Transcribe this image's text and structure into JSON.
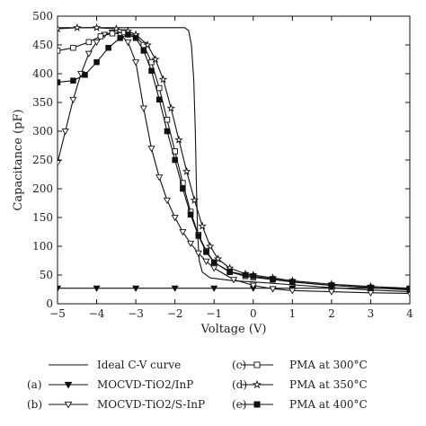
{
  "chart_data": {
    "type": "line",
    "xlabel": "Voltage (V)",
    "ylabel": "Capacitance (pF)",
    "xlim": [
      -5,
      4
    ],
    "ylim": [
      0,
      500
    ],
    "x_ticks": [
      -5,
      -4,
      -3,
      -2,
      -1,
      0,
      1,
      2,
      3,
      4
    ],
    "y_ticks": [
      0,
      50,
      100,
      150,
      200,
      250,
      300,
      350,
      400,
      450,
      500
    ],
    "grid": false,
    "legend_position": "bottom",
    "series": [
      {
        "key": "ideal",
        "name": "Ideal C-V curve",
        "prefix": "",
        "marker": "none",
        "points": [
          [
            -5,
            480
          ],
          [
            -2.0,
            480
          ],
          [
            -1.75,
            480
          ],
          [
            -1.65,
            475
          ],
          [
            -1.58,
            450
          ],
          [
            -1.52,
            390
          ],
          [
            -1.48,
            300
          ],
          [
            -1.45,
            200
          ],
          [
            -1.42,
            120
          ],
          [
            -1.38,
            75
          ],
          [
            -1.3,
            55
          ],
          [
            -1.1,
            45
          ],
          [
            -0.5,
            40
          ],
          [
            0,
            38
          ],
          [
            1,
            33
          ],
          [
            2,
            28
          ],
          [
            3,
            24
          ],
          [
            4,
            21
          ]
        ]
      },
      {
        "key": "a",
        "name": "MOCVD-TiO2/InP",
        "prefix": "(a)",
        "marker": "tri-down-filled",
        "points": [
          [
            -5,
            27
          ],
          [
            -4,
            27
          ],
          [
            -3,
            27
          ],
          [
            -2,
            27
          ],
          [
            -1,
            27
          ],
          [
            0,
            27
          ],
          [
            1,
            27
          ],
          [
            2,
            27
          ],
          [
            3,
            27
          ],
          [
            4,
            27
          ]
        ]
      },
      {
        "key": "b",
        "name": "MOCVD-TiO2/S-InP",
        "prefix": "(b)",
        "marker": "tri-down-open",
        "points": [
          [
            -5,
            245
          ],
          [
            -4.8,
            300
          ],
          [
            -4.6,
            355
          ],
          [
            -4.4,
            400
          ],
          [
            -4.2,
            435
          ],
          [
            -4.0,
            455
          ],
          [
            -3.8,
            468
          ],
          [
            -3.6,
            472
          ],
          [
            -3.4,
            468
          ],
          [
            -3.2,
            455
          ],
          [
            -3.0,
            420
          ],
          [
            -2.8,
            340
          ],
          [
            -2.6,
            270
          ],
          [
            -2.4,
            220
          ],
          [
            -2.2,
            180
          ],
          [
            -2.0,
            150
          ],
          [
            -1.8,
            125
          ],
          [
            -1.6,
            105
          ],
          [
            -1.4,
            88
          ],
          [
            -1.2,
            74
          ],
          [
            -1.0,
            62
          ],
          [
            -0.5,
            42
          ],
          [
            0,
            32
          ],
          [
            0.5,
            26
          ],
          [
            1,
            23
          ],
          [
            2,
            21
          ],
          [
            3,
            19
          ],
          [
            4,
            18
          ]
        ]
      },
      {
        "key": "c",
        "name": "PMA at 300°C",
        "prefix": "(c)",
        "marker": "square-open",
        "points": [
          [
            -5,
            440
          ],
          [
            -4.6,
            445
          ],
          [
            -4.2,
            455
          ],
          [
            -3.9,
            465
          ],
          [
            -3.6,
            470
          ],
          [
            -3.3,
            472
          ],
          [
            -3.0,
            465
          ],
          [
            -2.8,
            450
          ],
          [
            -2.6,
            420
          ],
          [
            -2.4,
            375
          ],
          [
            -2.2,
            320
          ],
          [
            -2.0,
            265
          ],
          [
            -1.8,
            210
          ],
          [
            -1.6,
            160
          ],
          [
            -1.4,
            120
          ],
          [
            -1.2,
            92
          ],
          [
            -1.0,
            72
          ],
          [
            -0.6,
            55
          ],
          [
            -0.2,
            48
          ],
          [
            0,
            46
          ],
          [
            0.5,
            42
          ],
          [
            1,
            38
          ],
          [
            2,
            32
          ],
          [
            3,
            28
          ],
          [
            4,
            25
          ]
        ]
      },
      {
        "key": "d",
        "name": "PMA at 350°C",
        "prefix": "(d)",
        "marker": "star",
        "points": [
          [
            -5,
            478
          ],
          [
            -4.5,
            480
          ],
          [
            -4.0,
            480
          ],
          [
            -3.5,
            478
          ],
          [
            -3.2,
            474
          ],
          [
            -3.0,
            468
          ],
          [
            -2.7,
            450
          ],
          [
            -2.5,
            425
          ],
          [
            -2.3,
            390
          ],
          [
            -2.1,
            340
          ],
          [
            -1.9,
            285
          ],
          [
            -1.7,
            230
          ],
          [
            -1.5,
            180
          ],
          [
            -1.3,
            135
          ],
          [
            -1.1,
            100
          ],
          [
            -0.9,
            78
          ],
          [
            -0.6,
            62
          ],
          [
            -0.2,
            52
          ],
          [
            0,
            50
          ],
          [
            0.5,
            45
          ],
          [
            1,
            40
          ],
          [
            2,
            34
          ],
          [
            3,
            30
          ],
          [
            4,
            27
          ]
        ]
      },
      {
        "key": "e",
        "name": "PMA at 400°C",
        "prefix": "(e)",
        "marker": "square-filled",
        "points": [
          [
            -5,
            385
          ],
          [
            -4.6,
            388
          ],
          [
            -4.3,
            398
          ],
          [
            -4.0,
            420
          ],
          [
            -3.7,
            445
          ],
          [
            -3.4,
            462
          ],
          [
            -3.2,
            468
          ],
          [
            -3.0,
            462
          ],
          [
            -2.8,
            440
          ],
          [
            -2.6,
            405
          ],
          [
            -2.4,
            355
          ],
          [
            -2.2,
            300
          ],
          [
            -2.0,
            250
          ],
          [
            -1.8,
            200
          ],
          [
            -1.6,
            155
          ],
          [
            -1.4,
            118
          ],
          [
            -1.2,
            90
          ],
          [
            -1.0,
            72
          ],
          [
            -0.6,
            56
          ],
          [
            -0.2,
            50
          ],
          [
            0,
            48
          ],
          [
            0.5,
            43
          ],
          [
            1,
            38
          ],
          [
            2,
            32
          ],
          [
            3,
            28
          ],
          [
            4,
            24
          ]
        ]
      }
    ]
  }
}
